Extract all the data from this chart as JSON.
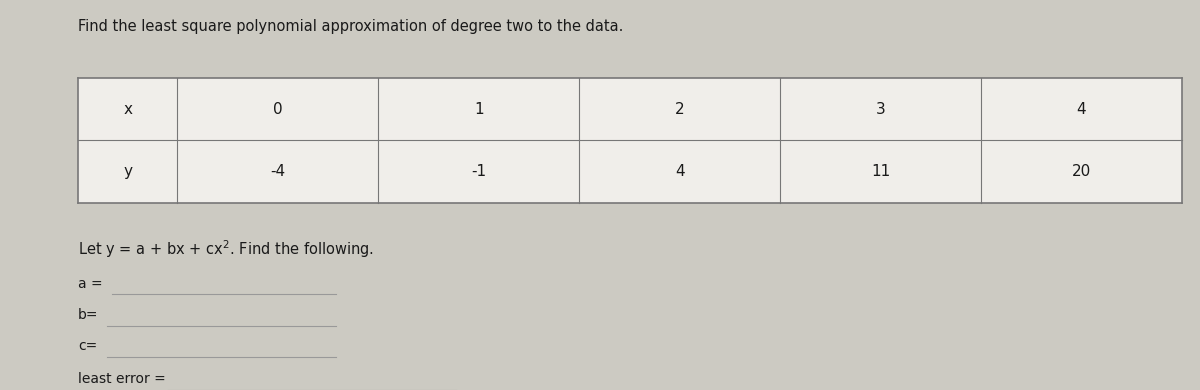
{
  "title": "Find the least square polynomial approximation of degree two to the data.",
  "table_x_label": "x",
  "table_y_label": "y",
  "x_values": [
    "0",
    "1",
    "2",
    "3",
    "4"
  ],
  "y_values": [
    "-4",
    "-1",
    "4",
    "11",
    "20"
  ],
  "equation_text": "Let y = a + bx + cx",
  "equation_superscript": "2",
  "equation_suffix": ". Find the following.",
  "answer_labels": [
    "a =",
    "b=",
    "c=",
    "least error ="
  ],
  "background_color": "#cccac2",
  "table_bg": "#f0eeea",
  "text_color": "#1a1a1a",
  "line_color": "#777777",
  "answer_line_color": "#999999",
  "title_fontsize": 10.5,
  "table_fontsize": 11,
  "label_fontsize": 10,
  "fig_width": 12.0,
  "fig_height": 3.9,
  "dpi": 100
}
